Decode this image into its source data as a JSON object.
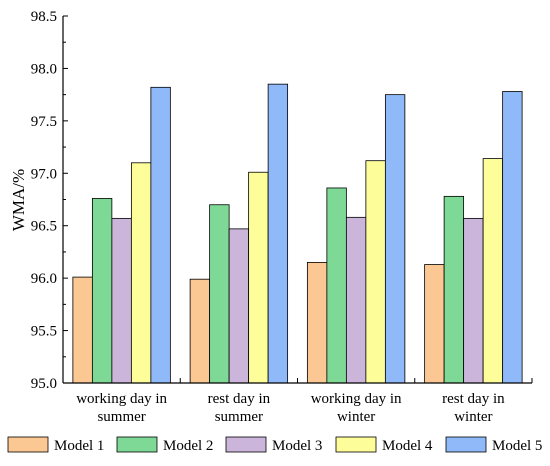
{
  "chart_data": {
    "type": "bar",
    "ylabel": "WMA/%",
    "xlabel": "",
    "ylim": [
      95.0,
      98.5
    ],
    "yticks": [
      "95.0",
      "95.5",
      "96.0",
      "96.5",
      "97.0",
      "97.5",
      "98.0",
      "98.5"
    ],
    "categories": [
      [
        "working day in",
        "summer"
      ],
      [
        "rest day in",
        "summer"
      ],
      [
        "working day in",
        "winter"
      ],
      [
        "rest day in",
        "winter"
      ]
    ],
    "series": [
      {
        "name": "Model 1",
        "color": "#fbc894",
        "values": [
          96.01,
          95.99,
          96.15,
          96.13
        ]
      },
      {
        "name": "Model 2",
        "color": "#7fd996",
        "values": [
          96.76,
          96.7,
          96.86,
          96.78
        ]
      },
      {
        "name": "Model 3",
        "color": "#ccb5da",
        "values": [
          96.57,
          96.47,
          96.58,
          96.57
        ]
      },
      {
        "name": "Model 4",
        "color": "#fdfd9a",
        "values": [
          97.1,
          97.01,
          97.12,
          97.14
        ]
      },
      {
        "name": "Model 5",
        "color": "#8fb9f8",
        "values": [
          97.82,
          97.85,
          97.75,
          97.78
        ]
      }
    ],
    "grid": false,
    "legend_position": "bottom"
  }
}
